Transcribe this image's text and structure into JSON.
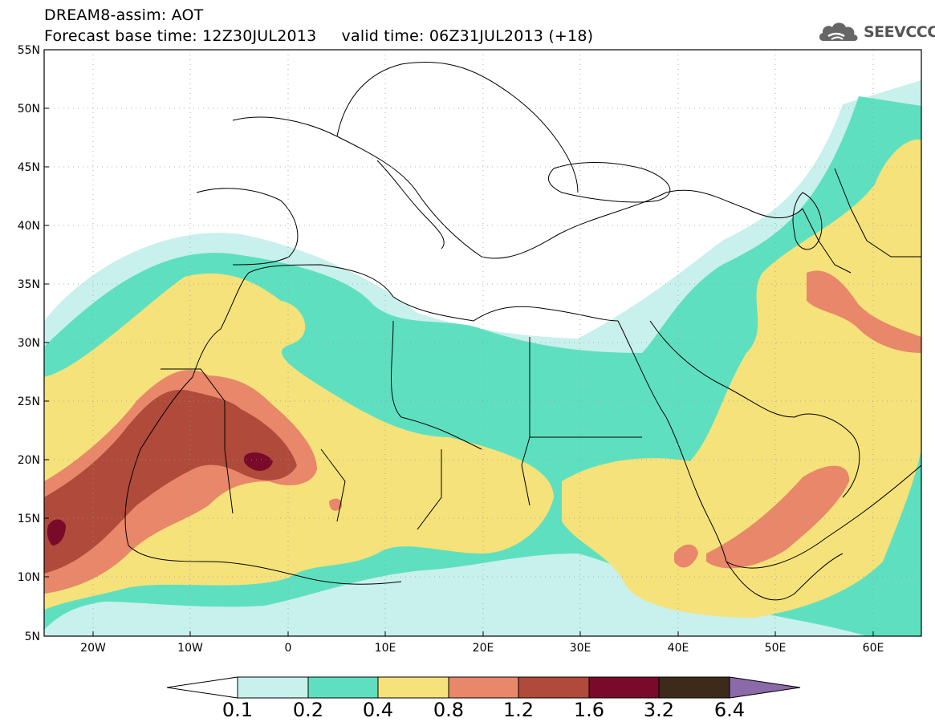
{
  "header": {
    "line1": "DREAM8-assim: AOT",
    "line2": "Forecast base time: 12Z30JUL2013     valid time: 06Z31JUL2013 (+18)"
  },
  "logo": {
    "text": "SEEVCCC",
    "icon": "cloud-logo-icon"
  },
  "map": {
    "variable": "AOT",
    "lon_range": [
      -25,
      65
    ],
    "lat_range": [
      5,
      55
    ],
    "lat_labels": [
      "55N",
      "50N",
      "45N",
      "40N",
      "35N",
      "30N",
      "25N",
      "20N",
      "15N",
      "10N",
      "5N"
    ],
    "lon_labels": [
      "20W",
      "10W",
      "0",
      "10E",
      "20E",
      "30E",
      "40E",
      "50E",
      "60E"
    ],
    "grid": true
  },
  "colorbar": {
    "labels": [
      "0.1",
      "0.2",
      "0.4",
      "0.8",
      "1.2",
      "1.6",
      "3.2",
      "6.4"
    ],
    "colors": [
      "#ffffff",
      "#c8f0ec",
      "#5ee0c0",
      "#f5e27a",
      "#e8876a",
      "#b04a3a",
      "#7a0a2a",
      "#3e2a1a",
      "#8a6aa8"
    ]
  }
}
